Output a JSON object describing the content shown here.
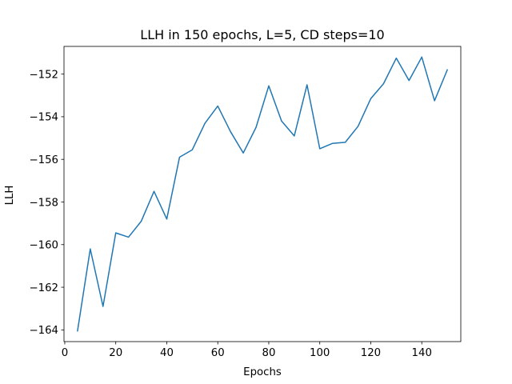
{
  "chart_data": {
    "type": "line",
    "title": "LLH in 150 epochs, L=5, CD steps=10",
    "xlabel": "Epochs",
    "ylabel": "LLH",
    "xlim": [
      -0.3,
      155.3
    ],
    "ylim": [
      -164.55,
      -150.7
    ],
    "xticks": [
      0,
      20,
      40,
      60,
      80,
      100,
      120,
      140
    ],
    "yticks": [
      -164,
      -162,
      -160,
      -158,
      -156,
      -154,
      -152
    ],
    "grid": false,
    "legend": "none",
    "series": [
      {
        "color": "#1f77b4",
        "x": [
          5,
          10,
          15,
          20,
          25,
          30,
          35,
          40,
          45,
          50,
          55,
          60,
          65,
          70,
          75,
          80,
          85,
          90,
          95,
          100,
          105,
          110,
          115,
          120,
          125,
          130,
          135,
          140,
          145,
          150
        ],
        "y": [
          -164.05,
          -160.2,
          -162.9,
          -159.45,
          -159.65,
          -158.9,
          -157.5,
          -158.8,
          -155.9,
          -155.55,
          -154.3,
          -153.5,
          -154.7,
          -155.7,
          -154.5,
          -152.55,
          -154.2,
          -154.9,
          -152.5,
          -155.5,
          -155.25,
          -155.2,
          -154.45,
          -153.15,
          -152.45,
          -151.25,
          -152.3,
          -151.2,
          -153.25,
          -151.8
        ]
      }
    ]
  }
}
